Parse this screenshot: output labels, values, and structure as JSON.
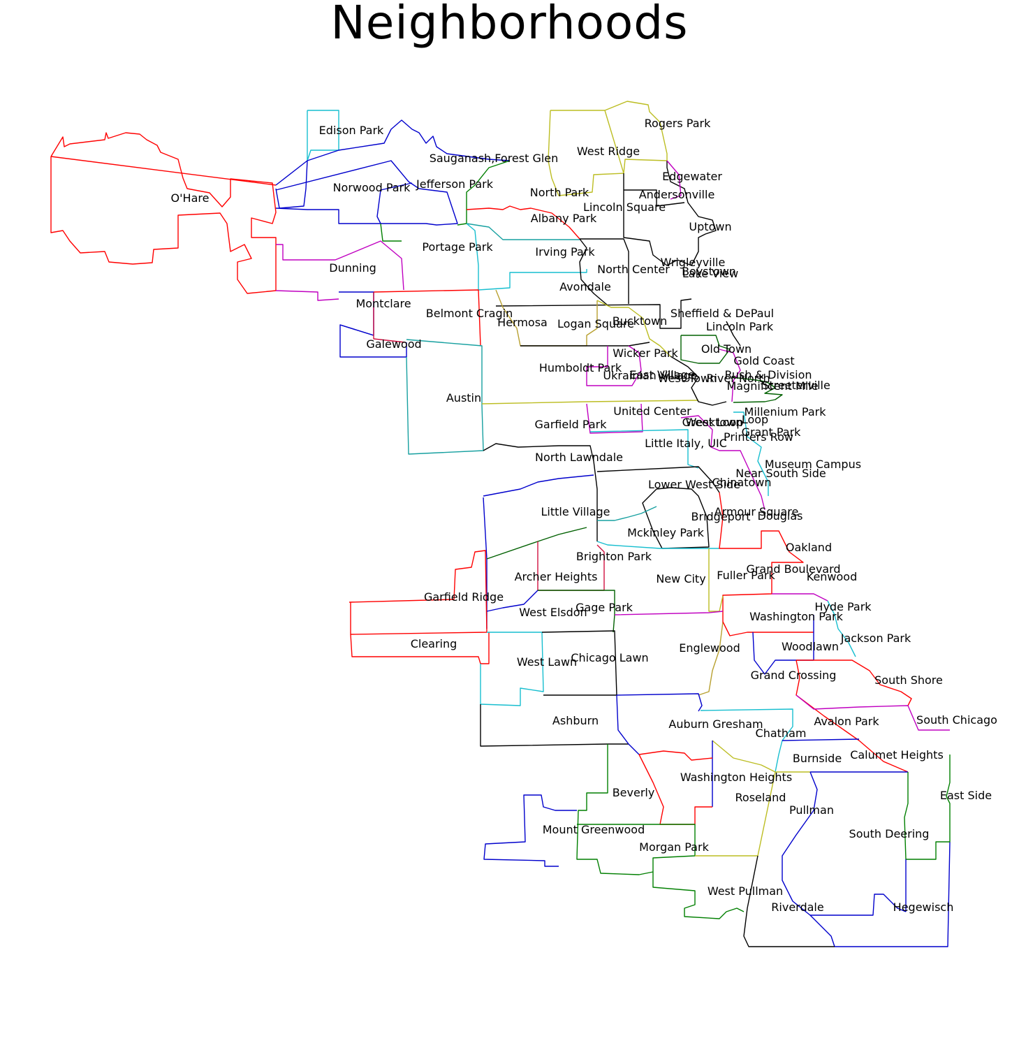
{
  "title": "Neighborhoods",
  "colors": {
    "red": "#ff0000",
    "blue": "#0000cc",
    "cyan": "#17becf",
    "olive": "#bcbd22",
    "magenta": "#c000c0",
    "green": "#007f00",
    "black": "#000000",
    "teal": "#17a0a0",
    "goldenrod": "#b8a030",
    "darkgreen": "#006000",
    "crimson": "#d01040"
  },
  "neighborhoods": [
    "Rogers Park",
    "Edison Park",
    "West Ridge",
    "Sauganash,Forest Glen",
    "Edgewater",
    "Andersonville",
    "Norwood Park",
    "Jefferson Park",
    "North Park",
    "O'Hare",
    "Lincoln Square",
    "Uptown",
    "Albany Park",
    "Portage Park",
    "Irving Park",
    "Wrigleyville",
    "Boystown",
    "Lake View",
    "North Center",
    "Dunning",
    "Avondale",
    "Montclare",
    "Belmont Cragin",
    "Sheffield & DePaul",
    "Hermosa",
    "Logan Square",
    "Bucktown",
    "Lincoln Park",
    "Galewood",
    "Old Town",
    "Wicker Park",
    "Gold Coast",
    "Humboldt Park",
    "Ukrainian Village",
    "East Village",
    "West Town",
    "River North",
    "Rush & Division",
    "Magnificent Mile",
    "Streeterville",
    "Austin",
    "United Center",
    "Millenium Park",
    "West Loop",
    "Greektown",
    "Loop",
    "Garfield Park",
    "Grant Park",
    "Printers Row",
    "Little Italy, UIC",
    "North Lawndale",
    "Museum Campus",
    "Near South Side",
    "Chinatown",
    "Lower West Side",
    "Little Village",
    "Armour Square",
    "Bridgeport",
    "Douglas",
    "Mckinley Park",
    "Oakland",
    "Brighton Park",
    "Grand Boulevard",
    "Archer Heights",
    "Fuller Park",
    "Kenwood",
    "New City",
    "Garfield Ridge",
    "Hyde Park",
    "Gage Park",
    "West Elsdon",
    "Washington Park",
    "Jackson Park",
    "Clearing",
    "Woodlawn",
    "Englewood",
    "Chicago Lawn",
    "West Lawn",
    "Grand Crossing",
    "South Shore",
    "Ashburn",
    "Avalon Park",
    "South Chicago",
    "Auburn Gresham",
    "Chatham",
    "Burnside",
    "Calumet Heights",
    "Washington Heights",
    "East Side",
    "Beverly",
    "Roseland",
    "Pullman",
    "South Deering",
    "Mount Greenwood",
    "Morgan Park",
    "West Pullman",
    "Riverdale",
    "Hegewisch"
  ]
}
